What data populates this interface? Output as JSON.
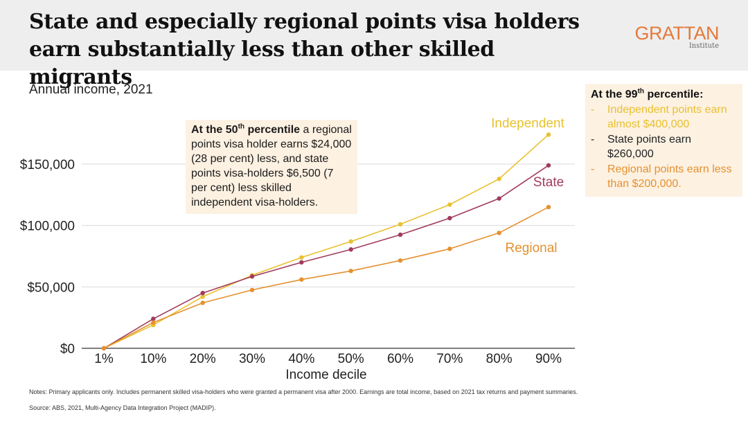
{
  "header": {
    "title_line1": "State and especially regional points visa holders",
    "title_line2": "earn substantially less than other skilled migrants",
    "logo_main": "GRATTAN",
    "logo_sub": "Institute"
  },
  "subtitle": "Annual income, 2021",
  "chart_data": {
    "type": "line",
    "x": [
      "1%",
      "10%",
      "20%",
      "30%",
      "40%",
      "50%",
      "60%",
      "70%",
      "80%",
      "90%"
    ],
    "xlabel": "Income decile",
    "ylabel": "",
    "ylim": [
      0,
      175000
    ],
    "yticks": [
      0,
      50000,
      100000,
      150000
    ],
    "ytick_labels": [
      "$0",
      "$50,000",
      "$100,000",
      "$150,000"
    ],
    "grid": "horizontal",
    "series": [
      {
        "name": "Independent",
        "color": "#e8c12e",
        "values": [
          0,
          19000,
          42000,
          59500,
          74000,
          87000,
          101000,
          117000,
          138000,
          174000
        ]
      },
      {
        "name": "State",
        "color": "#a13a5c",
        "values": [
          0,
          24000,
          45000,
          58500,
          70000,
          80500,
          92500,
          106000,
          122000,
          149000
        ]
      },
      {
        "name": "Regional",
        "color": "#e4912f",
        "values": [
          0,
          21000,
          37000,
          47500,
          56000,
          63000,
          71500,
          81000,
          94000,
          115000
        ]
      }
    ]
  },
  "annotation50": {
    "bold_prefix": "At the 50",
    "sup": "th",
    "bold_suffix": " percentile",
    "text": " a regional points visa holder earns $24,000 (28 per cent) less, and state points visa-holders $6,500 (7 per cent) less skilled independent visa-holders."
  },
  "annotation99": {
    "head_prefix": "At the 99",
    "head_sup": "th",
    "head_suffix": " percentile:",
    "items": [
      {
        "dash": "-",
        "text": "Independent points earn almost $400,000",
        "color": "#e8c12e"
      },
      {
        "dash": "-",
        "text": "State points earn $260,000",
        "color": "#222222"
      },
      {
        "dash": "-",
        "text": "Regional points earn less than $200,000.",
        "color": "#e4912f"
      }
    ]
  },
  "notes": "Notes: Primary applicants only. Includes permanent skilled visa-holders who were granted a permanent visa after 2000. Earnings are total income, based on 2021 tax returns and payment summaries.",
  "source": "Source: ABS, 2021, Multi-Agency Data Integration Project (MADIP)."
}
